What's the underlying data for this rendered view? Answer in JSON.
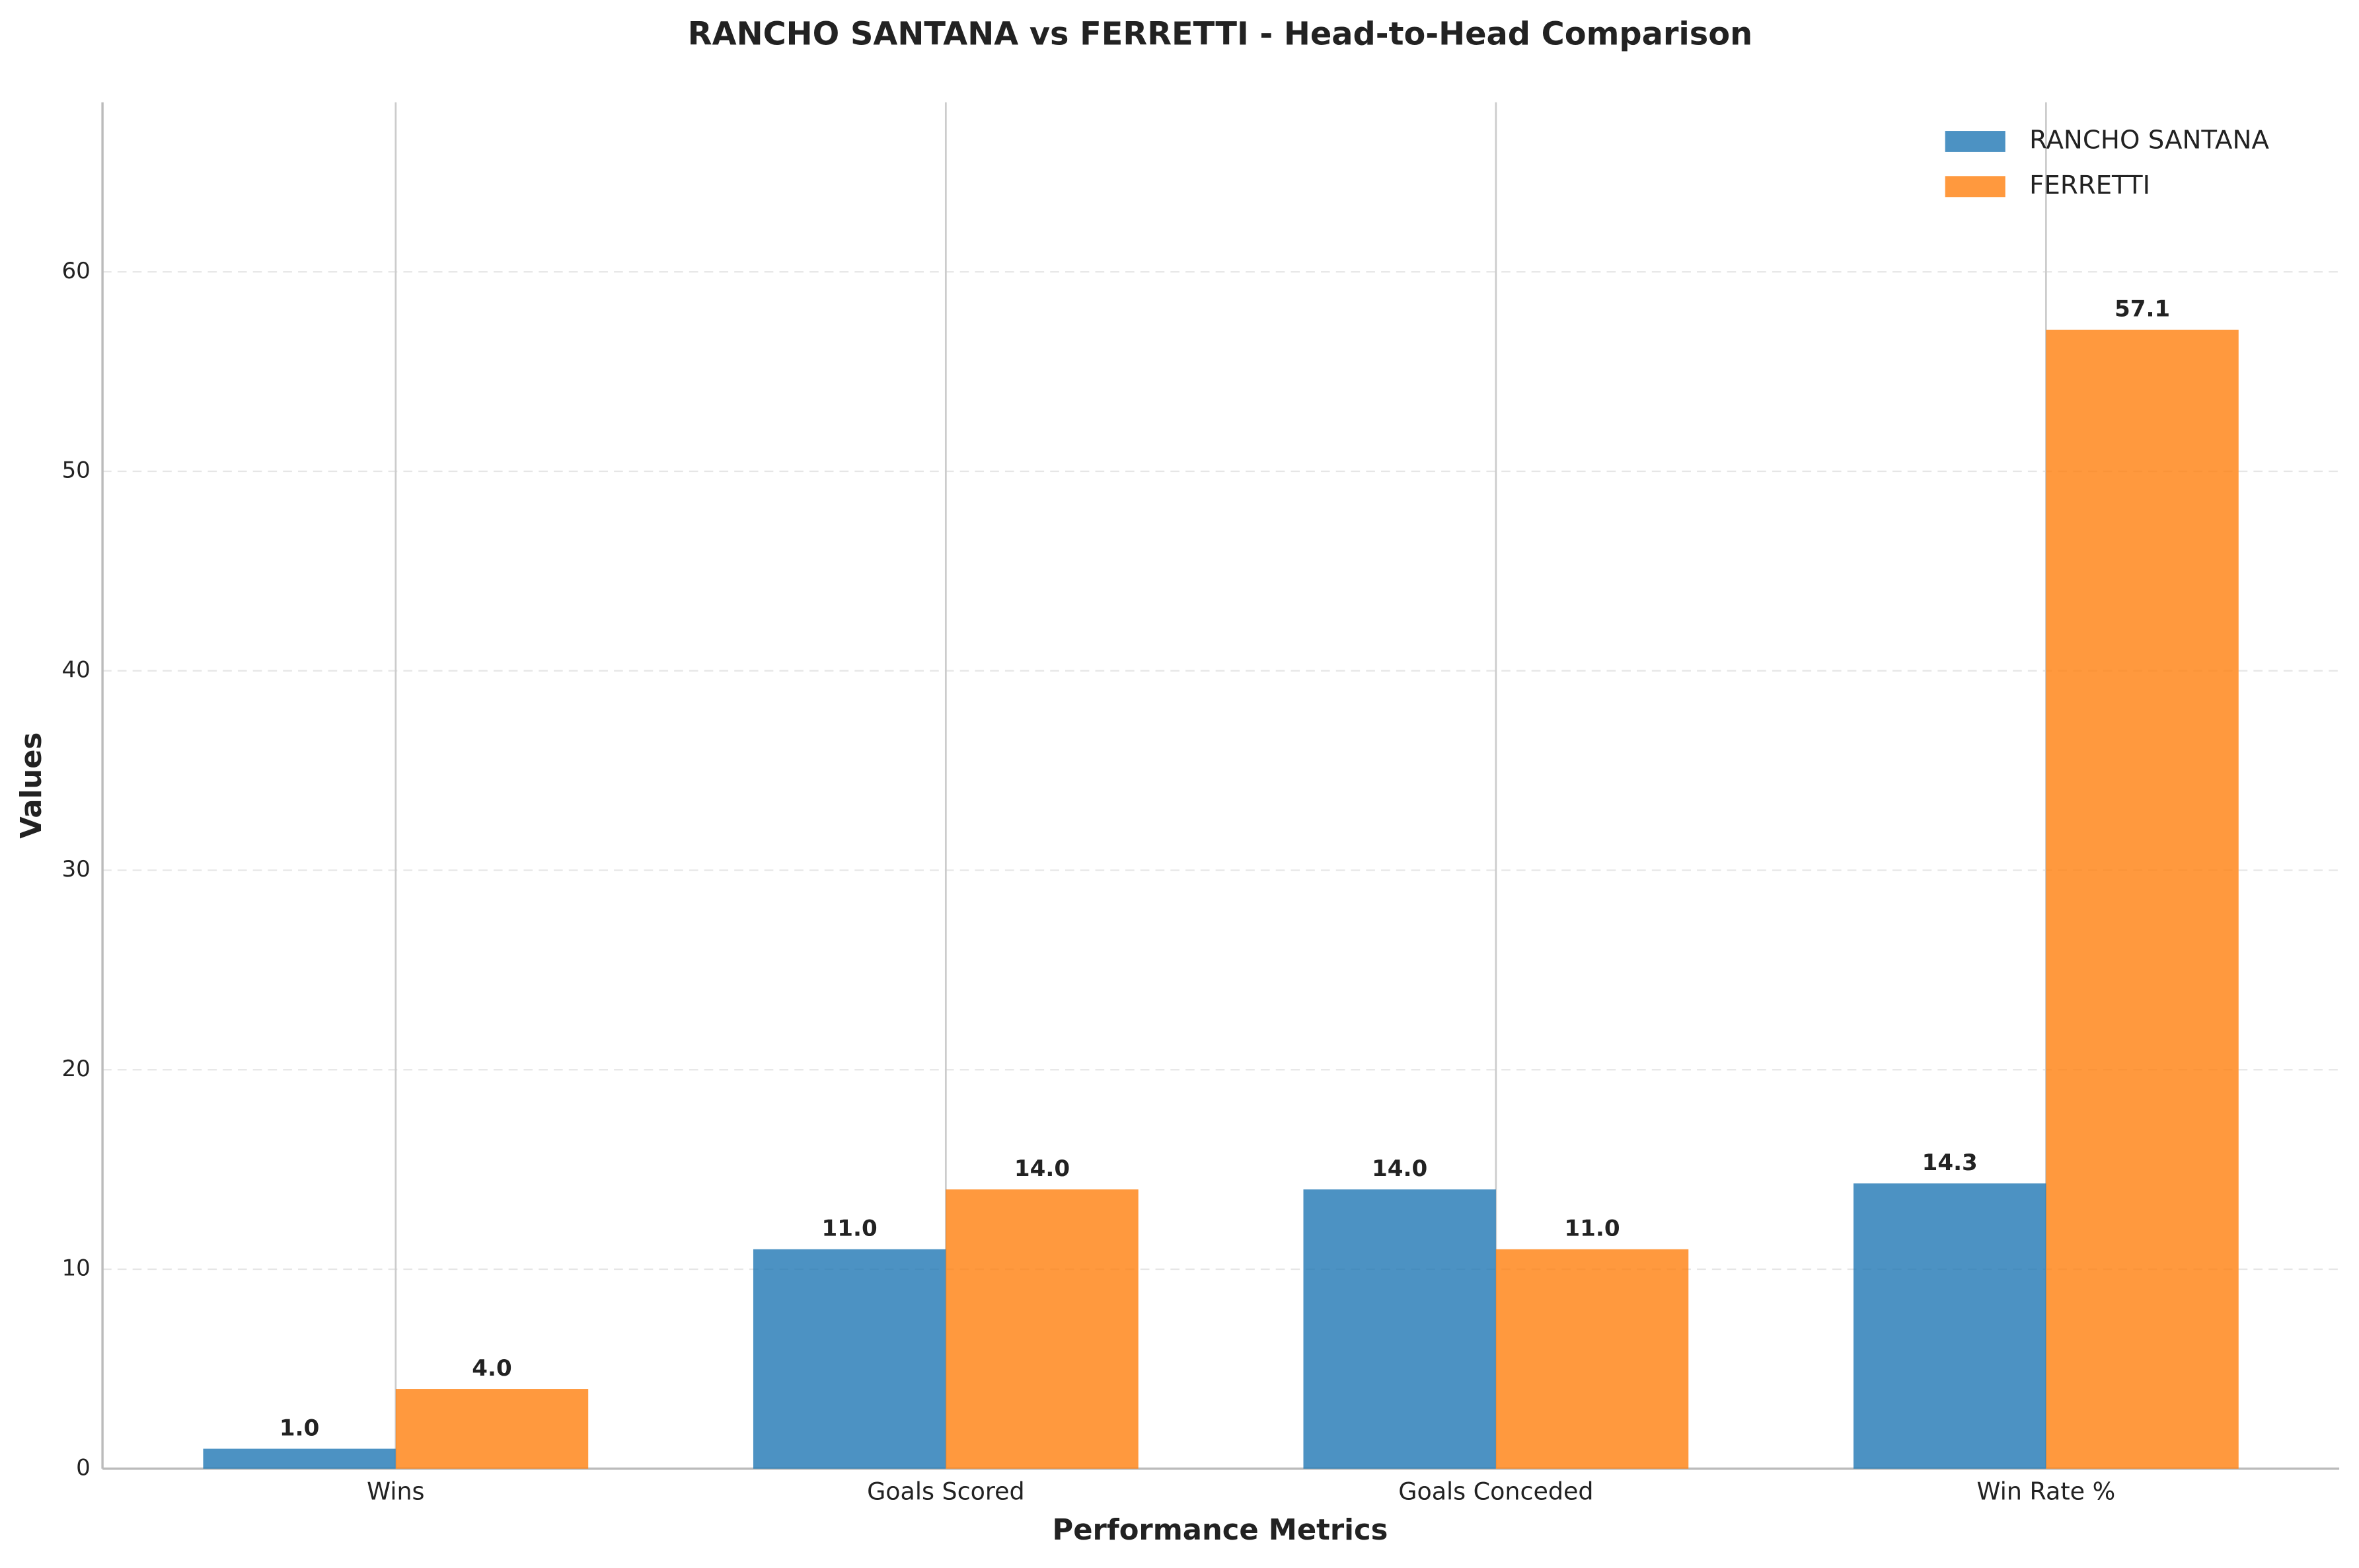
{
  "chart_data": {
    "type": "bar",
    "title": "RANCHO SANTANA vs FERRETTI - Head-to-Head Comparison",
    "x_label": "Performance Metrics",
    "y_label": "Values",
    "categories": [
      "Wins",
      "Goals Scored",
      "Goals Conceded",
      "Win Rate %"
    ],
    "series": [
      {
        "name": "RANCHO SANTANA",
        "color": "#1f77b4",
        "values": [
          1,
          11,
          14,
          14.3
        ],
        "value_labels": [
          "1.0",
          "11.0",
          "14.0",
          "14.3"
        ]
      },
      {
        "name": "FERRETTI",
        "color": "#ff7f0e",
        "values": [
          4,
          14,
          11,
          57.1
        ],
        "value_labels": [
          "4.0",
          "14.0",
          "11.0",
          "57.1"
        ]
      }
    ],
    "ylim": [
      0,
      68.5
    ],
    "yticks": [
      0,
      10,
      20,
      30,
      40,
      50,
      60
    ],
    "grid": true,
    "legend": "upper right"
  }
}
